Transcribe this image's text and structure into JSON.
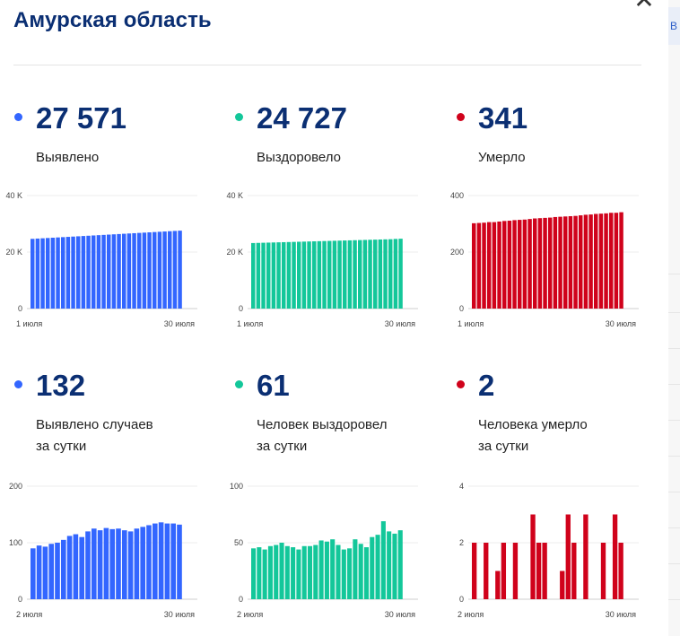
{
  "title": "Амурская область",
  "close_icon": "close-icon",
  "side_strip": {
    "tab_label": "В"
  },
  "stats": [
    {
      "id": "detected",
      "color": "#3366ff",
      "value": "27 571",
      "label": [
        "Выявлено"
      ]
    },
    {
      "id": "recovered",
      "color": "#13c79a",
      "value": "24 727",
      "label": [
        "Выздоровело"
      ]
    },
    {
      "id": "died",
      "color": "#d0021b",
      "value": "341",
      "label": [
        "Умерло"
      ]
    },
    {
      "id": "daily-detected",
      "color": "#3366ff",
      "value": "132",
      "label": [
        "Выявлено случаев",
        "за сутки"
      ]
    },
    {
      "id": "daily-recovered",
      "color": "#13c79a",
      "value": "61",
      "label": [
        "Человек выздоровел",
        "за сутки"
      ]
    },
    {
      "id": "daily-died",
      "color": "#d0021b",
      "value": "2",
      "label": [
        "Человека умерло",
        "за сутки"
      ]
    }
  ],
  "chart_data": [
    {
      "type": "bar",
      "color": "#3366ff",
      "ylim": [
        0,
        40000
      ],
      "y_ticks": [
        {
          "v": 0,
          "t": "0"
        },
        {
          "v": 20000,
          "t": "20 K"
        },
        {
          "v": 40000,
          "t": "40 K"
        }
      ],
      "x_labels": [
        "1 июля",
        "30 июля"
      ],
      "values": [
        24680,
        24780,
        24880,
        24980,
        25080,
        25180,
        25280,
        25380,
        25480,
        25580,
        25680,
        25780,
        25880,
        25980,
        26080,
        26180,
        26280,
        26380,
        26480,
        26580,
        26680,
        26780,
        26880,
        26980,
        27080,
        27180,
        27280,
        27380,
        27480,
        27571
      ]
    },
    {
      "type": "bar",
      "color": "#13c79a",
      "ylim": [
        0,
        40000
      ],
      "y_ticks": [
        {
          "v": 0,
          "t": "0"
        },
        {
          "v": 20000,
          "t": "20 K"
        },
        {
          "v": 40000,
          "t": "40 K"
        }
      ],
      "x_labels": [
        "1 июля",
        "30 июля"
      ],
      "values": [
        23200,
        23250,
        23300,
        23350,
        23400,
        23450,
        23500,
        23550,
        23600,
        23650,
        23700,
        23750,
        23800,
        23850,
        23900,
        23950,
        24000,
        24050,
        24100,
        24150,
        24200,
        24250,
        24300,
        24350,
        24400,
        24450,
        24500,
        24550,
        24650,
        24727
      ]
    },
    {
      "type": "bar",
      "color": "#d0021b",
      "ylim": [
        0,
        400
      ],
      "y_ticks": [
        {
          "v": 0,
          "t": "0"
        },
        {
          "v": 200,
          "t": "200"
        },
        {
          "v": 400,
          "t": "400"
        }
      ],
      "x_labels": [
        "1 июля",
        "30 июля"
      ],
      "values": [
        302,
        303,
        304,
        306,
        306,
        308,
        310,
        311,
        313,
        314,
        315,
        317,
        319,
        320,
        321,
        322,
        324,
        325,
        326,
        327,
        328,
        330,
        332,
        333,
        335,
        336,
        337,
        339,
        339,
        341
      ]
    },
    {
      "type": "bar",
      "color": "#3366ff",
      "ylim": [
        0,
        200
      ],
      "y_ticks": [
        {
          "v": 0,
          "t": "0"
        },
        {
          "v": 100,
          "t": "100"
        },
        {
          "v": 200,
          "t": "200"
        }
      ],
      "x_labels": [
        "2 июля",
        "30 июля"
      ],
      "values": [
        90,
        95,
        93,
        98,
        100,
        105,
        112,
        115,
        110,
        120,
        125,
        122,
        126,
        124,
        125,
        122,
        120,
        125,
        128,
        131,
        134,
        136,
        134,
        134,
        132
      ]
    },
    {
      "type": "bar",
      "color": "#13c79a",
      "ylim": [
        0,
        100
      ],
      "y_ticks": [
        {
          "v": 0,
          "t": "0"
        },
        {
          "v": 50,
          "t": "50"
        },
        {
          "v": 100,
          "t": "100"
        }
      ],
      "x_labels": [
        "2 июля",
        "30 июля"
      ],
      "values": [
        45,
        46,
        44,
        47,
        48,
        50,
        47,
        46,
        44,
        47,
        47,
        48,
        52,
        51,
        53,
        48,
        44,
        45,
        53,
        49,
        46,
        55,
        57,
        69,
        60,
        58,
        61
      ]
    },
    {
      "type": "bar",
      "color": "#d0021b",
      "ylim": [
        0,
        4
      ],
      "y_ticks": [
        {
          "v": 0,
          "t": "0"
        },
        {
          "v": 2,
          "t": "2"
        },
        {
          "v": 4,
          "t": "4"
        }
      ],
      "x_labels": [
        "2 июля",
        "30 июля"
      ],
      "values": [
        2,
        0,
        2,
        0,
        1,
        2,
        0,
        2,
        0,
        0,
        3,
        2,
        2,
        0,
        0,
        1,
        3,
        2,
        0,
        3,
        0,
        0,
        2,
        0,
        3,
        2
      ]
    }
  ]
}
